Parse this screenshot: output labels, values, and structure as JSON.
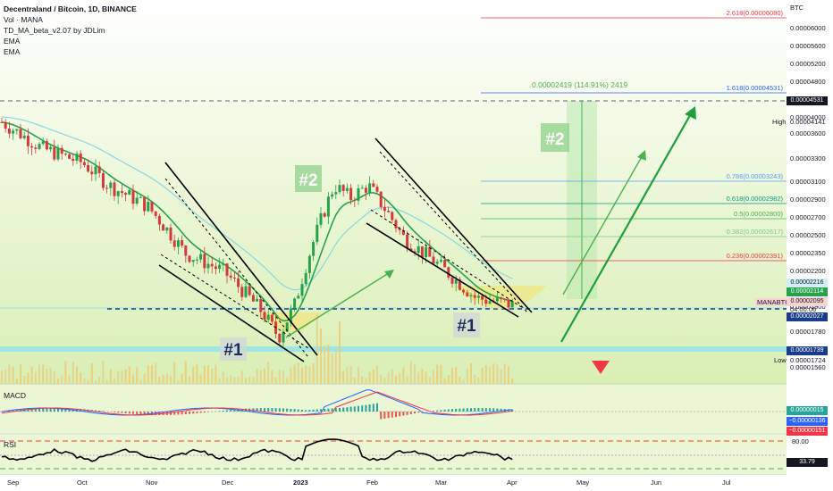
{
  "legend": {
    "symbol_line": "Decentraland / Bitcoin, 1D, BINANCE",
    "volume": "Vol · MANA",
    "indicator": "TD_MA_beta_v2.07 by JDLim",
    "ema1": "EMA",
    "ema2": "EMA"
  },
  "axis": {
    "currency": "BTC",
    "price_ticks": [
      "0.00006000",
      "0.00005600",
      "0.00005200",
      "0.00004800",
      "0.00004400",
      "0.00004000",
      "0.00003600",
      "0.00003300",
      "0.00003100",
      "0.00002900",
      "0.00002700",
      "0.00002500",
      "0.00002350",
      "0.00002200",
      "0.00002050",
      "0.00001900",
      "0.00001780",
      "0.00001660",
      "0.00001560"
    ],
    "high_label": "High",
    "low_label": "Low",
    "high_value": "0.00004141",
    "low_value": "0.00001724",
    "symbol_tag": "MANABTC",
    "countdown": "04:00:06",
    "badges": {
      "top_dark": "0.00004531",
      "cyan": "0.00002216",
      "green": "0.00002114",
      "pink_price": "0.00002095",
      "navy1": "0.00002027",
      "navy2": "0.00001739"
    },
    "x_ticks": [
      "Sep",
      "Oct",
      "Nov",
      "Dec",
      "2023",
      "Feb",
      "Mar",
      "Apr",
      "May",
      "Jun",
      "Jul"
    ]
  },
  "fib_levels": [
    {
      "label": "2.618(0.00006080)",
      "color": "#f23645"
    },
    {
      "label": "1.618(0.00004531)",
      "color": "#2962ff"
    },
    {
      "label": "0.786(0.00003243)",
      "color": "#5b9cf6"
    },
    {
      "label": "0.618(0.00002982)",
      "color": "#089981"
    },
    {
      "label": "0.5(0.00002800)",
      "color": "#4caf50"
    },
    {
      "label": "0.382(0.00002617)",
      "color": "#81c784"
    },
    {
      "label": "0.236(0.00002391)",
      "color": "#f23645"
    }
  ],
  "annotations": {
    "measure": "0.00002419 (114.91%) 2419",
    "hash1_a": "#1",
    "hash1_b": "#1",
    "hash2_a": "#2",
    "hash2_b": "#2"
  },
  "macd": {
    "title": "MACD",
    "values": [
      "0.00000015",
      "−0.00000136",
      "−0.00000151"
    ],
    "colors": [
      "#26a69a",
      "#2962ff",
      "#f23645"
    ]
  },
  "rsi": {
    "title": "RSI",
    "level_80": "80.00",
    "value": "33.79"
  },
  "chart_data": {
    "type": "candlestick",
    "title": "Decentraland / Bitcoin, 1D, BINANCE",
    "x_ticks": [
      "Sep",
      "Oct",
      "Nov",
      "Dec",
      "2023",
      "Feb",
      "Mar",
      "Apr",
      "May",
      "Jun",
      "Jul"
    ],
    "close_path": [
      [
        "Sep",
        4.2e-05
      ],
      [
        "mid-Sep",
        3.8e-05
      ],
      [
        "Oct",
        3.6e-05
      ],
      [
        "mid-Oct",
        3.3e-05
      ],
      [
        "Nov",
        3.05e-05
      ],
      [
        "mid-Nov",
        2.55e-05
      ],
      [
        "Dec",
        2.38e-05
      ],
      [
        "mid-Dec",
        2.05e-05
      ],
      [
        "late-Dec",
        1.85e-05
      ],
      [
        "2023",
        2.1e-05
      ],
      [
        "early-Jan",
        3.3e-05
      ],
      [
        "mid-Jan",
        3.15e-05
      ],
      [
        "Feb",
        3.3e-05
      ],
      [
        "mid-Feb",
        2.7e-05
      ],
      [
        "Mar",
        2.45e-05
      ],
      [
        "mid-Mar",
        2.15e-05
      ],
      [
        "Apr",
        2.09e-05
      ]
    ],
    "last_price": 2.095e-05,
    "period_high": 4.141e-05,
    "period_low": 1.724e-05
  }
}
